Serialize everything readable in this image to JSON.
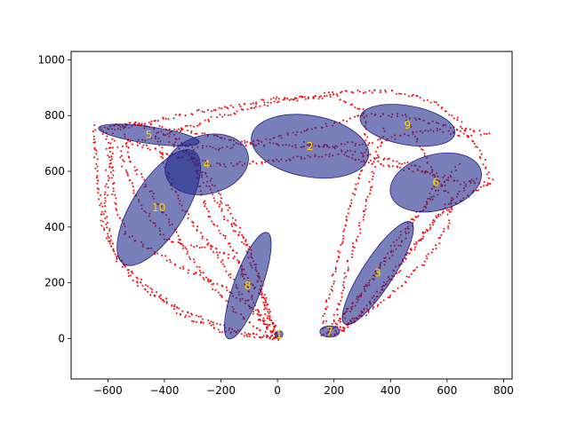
{
  "chart_data": {
    "type": "scatter",
    "title": "",
    "xlabel": "",
    "ylabel": "",
    "xlim": [
      -730,
      830
    ],
    "ylim": [
      -145,
      1030
    ],
    "xticks": [
      -600,
      -400,
      -200,
      0,
      200,
      400,
      600,
      800
    ],
    "yticks": [
      0,
      200,
      400,
      600,
      800,
      1000
    ],
    "grid": false,
    "legend": "none",
    "colors": {
      "points": "#ff0000",
      "ellipse_fill": "#1f2a8a",
      "ellipse_edge": "#1f1f8f",
      "cluster_label": "#ffd700"
    },
    "clusters": [
      {
        "label": "1",
        "center": [
          5,
          15
        ],
        "width": 28,
        "height": 28,
        "angle": 0
      },
      {
        "label": "2",
        "center": [
          115,
          690
        ],
        "width": 420,
        "height": 220,
        "angle": -10
      },
      {
        "label": "3",
        "center": [
          355,
          235
        ],
        "width": 430,
        "height": 110,
        "angle": 57
      },
      {
        "label": "4",
        "center": [
          -250,
          625
        ],
        "width": 300,
        "height": 210,
        "angle": 15
      },
      {
        "label": "5",
        "center": [
          -455,
          730
        ],
        "width": 360,
        "height": 60,
        "angle": -8
      },
      {
        "label": "6",
        "center": [
          560,
          560
        ],
        "width": 330,
        "height": 200,
        "angle": 15
      },
      {
        "label": "7",
        "center": [
          185,
          25
        ],
        "width": 70,
        "height": 40,
        "angle": 0
      },
      {
        "label": "8",
        "center": [
          -105,
          190
        ],
        "width": 400,
        "height": 100,
        "angle": 70
      },
      {
        "label": "9",
        "center": [
          460,
          765
        ],
        "width": 340,
        "height": 140,
        "angle": -10
      },
      {
        "label": "10",
        "center": [
          -420,
          470
        ],
        "width": 470,
        "height": 190,
        "angle": 58
      }
    ],
    "paths": [
      [
        [
          0,
          0
        ],
        [
          -30,
          80
        ],
        [
          -60,
          200
        ],
        [
          -90,
          300
        ],
        [
          -150,
          420
        ],
        [
          -230,
          560
        ],
        [
          -300,
          650
        ],
        [
          -380,
          700
        ]
      ],
      [
        [
          0,
          0
        ],
        [
          -40,
          120
        ],
        [
          -80,
          250
        ],
        [
          -120,
          350
        ],
        [
          -200,
          460
        ],
        [
          -280,
          600
        ],
        [
          -350,
          720
        ],
        [
          -500,
          770
        ],
        [
          -620,
          740
        ]
      ],
      [
        [
          0,
          0
        ],
        [
          -60,
          150
        ],
        [
          -140,
          280
        ],
        [
          -240,
          330
        ],
        [
          -330,
          330
        ],
        [
          -400,
          360
        ],
        [
          -480,
          480
        ],
        [
          -540,
          600
        ],
        [
          -560,
          680
        ]
      ],
      [
        [
          0,
          0
        ],
        [
          -100,
          120
        ],
        [
          -220,
          200
        ],
        [
          -330,
          250
        ],
        [
          -420,
          300
        ],
        [
          -540,
          380
        ],
        [
          -580,
          520
        ],
        [
          -590,
          650
        ],
        [
          -620,
          760
        ]
      ],
      [
        [
          -620,
          760
        ],
        [
          -480,
          770
        ],
        [
          -300,
          740
        ],
        [
          -100,
          700
        ],
        [
          100,
          690
        ],
        [
          300,
          700
        ],
        [
          450,
          730
        ],
        [
          560,
          750
        ],
        [
          700,
          720
        ]
      ],
      [
        [
          -560,
          690
        ],
        [
          -400,
          730
        ],
        [
          -200,
          800
        ],
        [
          0,
          850
        ],
        [
          200,
          880
        ],
        [
          400,
          890
        ],
        [
          550,
          850
        ],
        [
          640,
          780
        ],
        [
          700,
          700
        ],
        [
          760,
          560
        ]
      ],
      [
        [
          -500,
          700
        ],
        [
          -350,
          650
        ],
        [
          -200,
          620
        ],
        [
          0,
          640
        ],
        [
          200,
          660
        ],
        [
          400,
          620
        ],
        [
          550,
          590
        ],
        [
          650,
          560
        ],
        [
          760,
          560
        ]
      ],
      [
        [
          -380,
          700
        ],
        [
          -200,
          680
        ],
        [
          0,
          720
        ],
        [
          150,
          760
        ],
        [
          300,
          800
        ],
        [
          450,
          800
        ],
        [
          600,
          760
        ],
        [
          760,
          730
        ]
      ],
      [
        [
          760,
          560
        ],
        [
          650,
          500
        ],
        [
          560,
          430
        ],
        [
          500,
          350
        ],
        [
          430,
          250
        ],
        [
          360,
          160
        ],
        [
          290,
          80
        ],
        [
          230,
          30
        ],
        [
          180,
          5
        ]
      ],
      [
        [
          700,
          580
        ],
        [
          600,
          480
        ],
        [
          520,
          380
        ],
        [
          440,
          280
        ],
        [
          370,
          180
        ],
        [
          300,
          100
        ],
        [
          240,
          40
        ],
        [
          190,
          10
        ]
      ],
      [
        [
          640,
          620
        ],
        [
          560,
          520
        ],
        [
          470,
          420
        ],
        [
          400,
          320
        ],
        [
          340,
          220
        ],
        [
          280,
          130
        ],
        [
          220,
          60
        ],
        [
          170,
          10
        ]
      ],
      [
        [
          180,
          5
        ],
        [
          200,
          60
        ],
        [
          230,
          180
        ],
        [
          260,
          300
        ],
        [
          300,
          420
        ],
        [
          330,
          560
        ],
        [
          350,
          660
        ],
        [
          380,
          760
        ]
      ],
      [
        [
          160,
          10
        ],
        [
          170,
          100
        ],
        [
          200,
          220
        ],
        [
          230,
          360
        ],
        [
          260,
          480
        ],
        [
          300,
          600
        ],
        [
          320,
          700
        ],
        [
          300,
          820
        ],
        [
          200,
          870
        ],
        [
          0,
          860
        ],
        [
          -250,
          820
        ],
        [
          -450,
          780
        ],
        [
          -600,
          760
        ]
      ],
      [
        [
          -580,
          730
        ],
        [
          -600,
          600
        ],
        [
          -610,
          450
        ],
        [
          -580,
          320
        ],
        [
          -520,
          220
        ],
        [
          -430,
          150
        ],
        [
          -330,
          80
        ],
        [
          -200,
          30
        ],
        [
          -60,
          5
        ],
        [
          0,
          0
        ]
      ],
      [
        [
          -650,
          760
        ],
        [
          -640,
          600
        ],
        [
          -620,
          420
        ],
        [
          -570,
          290
        ],
        [
          -480,
          200
        ],
        [
          -370,
          120
        ],
        [
          -240,
          60
        ],
        [
          -100,
          15
        ],
        [
          0,
          0
        ]
      ],
      [
        [
          -540,
          760
        ],
        [
          -520,
          640
        ],
        [
          -460,
          540
        ],
        [
          -390,
          430
        ],
        [
          -330,
          330
        ],
        [
          -270,
          240
        ],
        [
          -200,
          150
        ],
        [
          -120,
          70
        ],
        [
          -40,
          15
        ],
        [
          0,
          0
        ]
      ],
      [
        [
          -430,
          740
        ],
        [
          -400,
          620
        ],
        [
          -360,
          520
        ],
        [
          -320,
          440
        ],
        [
          -260,
          360
        ],
        [
          -200,
          280
        ],
        [
          -140,
          180
        ],
        [
          -80,
          90
        ],
        [
          -20,
          20
        ]
      ],
      [
        [
          -300,
          680
        ],
        [
          -280,
          560
        ],
        [
          -250,
          460
        ],
        [
          -200,
          380
        ],
        [
          -150,
          300
        ],
        [
          -110,
          200
        ],
        [
          -70,
          100
        ],
        [
          -20,
          20
        ]
      ],
      [
        [
          460,
          780
        ],
        [
          500,
          700
        ],
        [
          540,
          620
        ],
        [
          560,
          560
        ],
        [
          520,
          470
        ],
        [
          460,
          380
        ],
        [
          400,
          300
        ],
        [
          330,
          210
        ],
        [
          260,
          120
        ],
        [
          200,
          40
        ]
      ],
      [
        [
          100,
          700
        ],
        [
          200,
          680
        ],
        [
          350,
          650
        ],
        [
          480,
          620
        ],
        [
          570,
          570
        ],
        [
          620,
          500
        ],
        [
          600,
          400
        ],
        [
          540,
          300
        ],
        [
          450,
          200
        ],
        [
          330,
          100
        ],
        [
          220,
          30
        ]
      ]
    ]
  }
}
